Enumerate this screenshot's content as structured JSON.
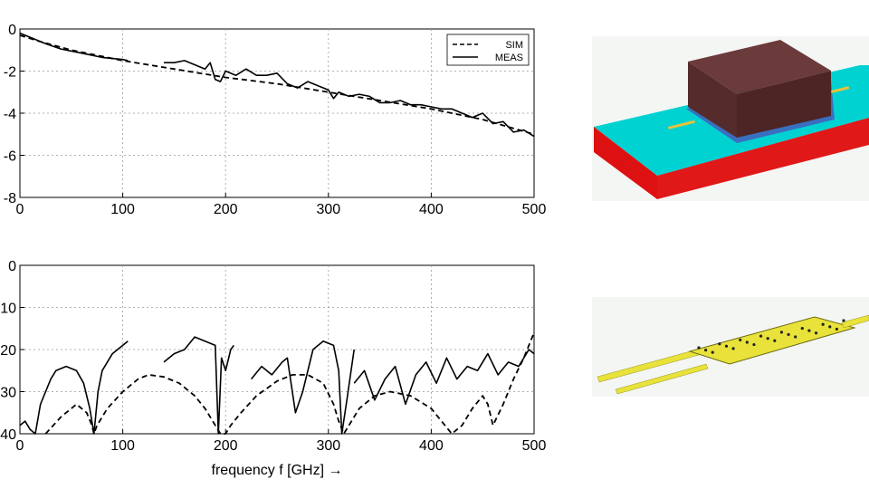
{
  "chart_data": [
    {
      "type": "line",
      "xlim": [
        0,
        500
      ],
      "ylim": [
        -8,
        0
      ],
      "xticks": [
        "0",
        "100",
        "200",
        "300",
        "400",
        "500"
      ],
      "yticks": [
        "0",
        "-2",
        "-4",
        "-6",
        "-8"
      ],
      "grid": true,
      "legend_position": "top-right",
      "legend": [
        "SIM",
        "MEAS"
      ],
      "series": [
        {
          "name": "SIM",
          "style": "dashed",
          "x": [
            0,
            20,
            50,
            100,
            150,
            200,
            250,
            300,
            350,
            400,
            450,
            500
          ],
          "y": [
            -0.3,
            -0.6,
            -1.0,
            -1.5,
            -1.9,
            -2.3,
            -2.6,
            -3.0,
            -3.4,
            -3.8,
            -4.3,
            -5.0
          ]
        },
        {
          "name": "MEAS",
          "style": "solid",
          "segments": [
            {
              "x": [
                0,
                10,
                25,
                40,
                60,
                80,
                100,
                105
              ],
              "y": [
                -0.2,
                -0.4,
                -0.7,
                -0.95,
                -1.15,
                -1.35,
                -1.45,
                -1.5
              ]
            },
            {
              "x": [
                140,
                150,
                160,
                170,
                180,
                185,
                190,
                195,
                200,
                210,
                220,
                230,
                240,
                250,
                260,
                270,
                280,
                290,
                300,
                305,
                310,
                320,
                330,
                340,
                350,
                360,
                370,
                380,
                390,
                400,
                410,
                420,
                430,
                440,
                450,
                460,
                470,
                480,
                490,
                500
              ],
              "y": [
                -1.6,
                -1.6,
                -1.5,
                -1.7,
                -1.9,
                -1.6,
                -2.4,
                -2.5,
                -2.0,
                -2.2,
                -1.9,
                -2.2,
                -2.2,
                -2.1,
                -2.6,
                -2.8,
                -2.5,
                -2.7,
                -2.9,
                -3.3,
                -3.0,
                -3.2,
                -3.1,
                -3.2,
                -3.5,
                -3.5,
                -3.4,
                -3.6,
                -3.6,
                -3.7,
                -3.8,
                -3.8,
                -4.0,
                -4.2,
                -4.0,
                -4.5,
                -4.4,
                -4.9,
                -4.8,
                -5.1
              ]
            }
          ]
        }
      ]
    },
    {
      "type": "line",
      "xlim": [
        0,
        500
      ],
      "ylim": [
        -40,
        0
      ],
      "xticks": [
        "0",
        "100",
        "200",
        "300",
        "400",
        "500"
      ],
      "yticks": [
        "0",
        "-10",
        "-20",
        "-30",
        "-40"
      ],
      "grid": true,
      "xlabel": "frequency f [GHz] →",
      "series": [
        {
          "name": "SIM",
          "style": "dashed",
          "x": [
            25,
            40,
            55,
            65,
            70,
            72,
            75,
            85,
            100,
            115,
            125,
            140,
            155,
            170,
            180,
            190,
            195,
            200,
            205,
            215,
            230,
            250,
            265,
            280,
            295,
            305,
            310,
            315,
            320,
            330,
            345,
            360,
            380,
            400,
            410,
            420,
            430,
            440,
            450,
            455,
            460,
            470,
            480,
            490,
            500
          ],
          "y": [
            -40,
            -36,
            -33,
            -35,
            -38,
            -40,
            -38,
            -34,
            -30,
            -27,
            -26,
            -26.5,
            -28,
            -31,
            -34,
            -38,
            -40,
            -40,
            -38,
            -35,
            -31,
            -27.5,
            -26,
            -26,
            -28,
            -33,
            -37,
            -40,
            -38,
            -34,
            -31,
            -30,
            -31,
            -34,
            -37,
            -40,
            -38,
            -34,
            -31,
            -33,
            -38,
            -33,
            -27,
            -22,
            -16
          ]
        },
        {
          "name": "MEAS",
          "style": "solid",
          "segments": [
            {
              "x": [
                0,
                5,
                10,
                15,
                20,
                25,
                30,
                35,
                45,
                55,
                62,
                68,
                72,
                76,
                80,
                90,
                100,
                105
              ],
              "y": [
                -38,
                -37,
                -39,
                -40,
                -33,
                -30,
                -27,
                -25,
                -24,
                -25,
                -28,
                -34,
                -40,
                -30,
                -25,
                -21,
                -19,
                -18
              ]
            },
            {
              "x": [
                140,
                150,
                160,
                170,
                180,
                190,
                193,
                196,
                200,
                205,
                208
              ],
              "y": [
                -23,
                -21,
                -20,
                -17,
                -18,
                -19,
                -40,
                -22,
                -25,
                -20,
                -19
              ]
            },
            {
              "x": [
                225,
                235,
                245,
                255,
                260,
                268,
                275,
                285,
                295,
                305,
                310,
                313,
                318,
                325
              ],
              "y": [
                -27,
                -24,
                -26,
                -23,
                -22,
                -35,
                -30,
                -20,
                -18,
                -19,
                -25,
                -40,
                -32,
                -20
              ]
            },
            {
              "x": [
                325,
                335,
                345,
                355,
                365,
                375,
                385,
                395,
                405,
                415,
                425,
                435,
                445,
                455,
                465,
                475,
                485,
                495,
                500
              ],
              "y": [
                -28,
                -25,
                -32,
                -27,
                -24,
                -33,
                -26,
                -23,
                -28,
                -22,
                -27,
                -24,
                -25,
                -21,
                -26,
                -23,
                -24,
                -20,
                -21
              ]
            }
          ]
        }
      ]
    }
  ],
  "colors": {
    "box_top": "#6b3a3a",
    "box_side": "#4e2525",
    "substrate_top": "#00d2d2",
    "substrate_side": "#dd1111",
    "metal": "#e8e23a"
  }
}
